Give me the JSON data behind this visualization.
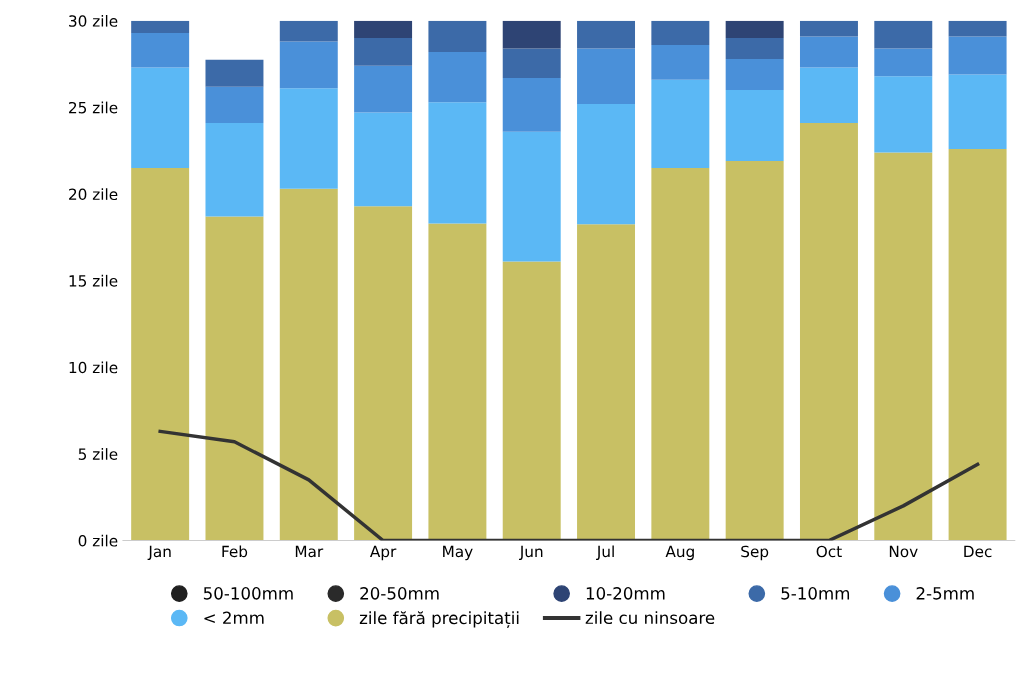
{
  "chart_data": {
    "type": "bar",
    "stacked": true,
    "categories": [
      "Jan",
      "Feb",
      "Mar",
      "Apr",
      "May",
      "Jun",
      "Jul",
      "Aug",
      "Sep",
      "Oct",
      "Nov",
      "Dec"
    ],
    "ylim": [
      0,
      30
    ],
    "yticks": [
      {
        "value": 0,
        "label": "0 zile"
      },
      {
        "value": 5,
        "label": "5 zile"
      },
      {
        "value": 10,
        "label": "10 zile"
      },
      {
        "value": 15,
        "label": "15 zile"
      },
      {
        "value": 20,
        "label": "20 zile"
      },
      {
        "value": 25,
        "label": "25 zile"
      },
      {
        "value": 30,
        "label": "30 zile"
      }
    ],
    "series": [
      {
        "name": "zile fără precipitații",
        "color": "#c8c064",
        "values": [
          21.5,
          18.7,
          20.3,
          19.3,
          18.3,
          16.1,
          18.25,
          21.5,
          21.9,
          24.1,
          22.4,
          22.6
        ]
      },
      {
        "name": "< 2mm",
        "color": "#5bb8f5",
        "values": [
          5.8,
          5.4,
          5.8,
          5.4,
          7.0,
          7.5,
          6.95,
          5.1,
          4.1,
          3.2,
          4.4,
          4.3
        ]
      },
      {
        "name": "2-5mm",
        "color": "#4a90d9",
        "values": [
          2.0,
          2.1,
          2.7,
          2.7,
          2.9,
          3.1,
          3.2,
          2.0,
          1.8,
          1.8,
          1.6,
          2.2
        ]
      },
      {
        "name": "5-10mm",
        "color": "#3c6aa8",
        "values": [
          0.7,
          1.55,
          1.2,
          1.6,
          1.8,
          1.7,
          1.6,
          1.4,
          1.2,
          0.9,
          1.6,
          0.9
        ]
      },
      {
        "name": "10-20mm",
        "color": "#2e4474",
        "values": [
          0,
          0,
          0,
          1.0,
          0,
          1.6,
          0,
          0,
          1.0,
          0,
          0,
          0
        ]
      },
      {
        "name": "20-50mm",
        "color": "#2a2a2a",
        "values": [
          0,
          0,
          0,
          0,
          0,
          0,
          0,
          0,
          0,
          0,
          0,
          0
        ]
      },
      {
        "name": "50-100mm",
        "color": "#202020",
        "values": [
          0,
          0,
          0,
          0,
          0,
          0,
          0,
          0,
          0,
          0,
          0,
          0
        ]
      },
      {
        "name": "zile cu ninsoare",
        "type": "line",
        "color": "#333333",
        "values": [
          6.3,
          5.7,
          3.5,
          0,
          0,
          0,
          0,
          0,
          0,
          0,
          2.0,
          4.4
        ]
      }
    ],
    "legend": "bottom"
  }
}
